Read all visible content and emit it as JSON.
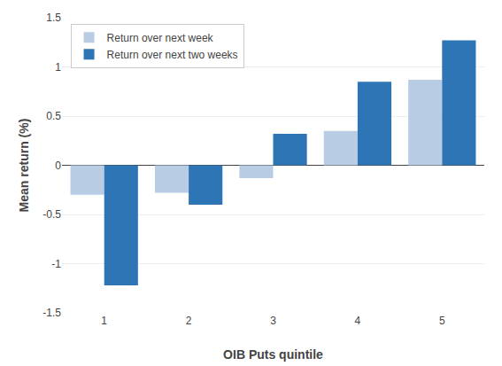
{
  "chart_data": {
    "type": "bar",
    "categories": [
      1,
      2,
      3,
      4,
      5
    ],
    "series": [
      {
        "name": "Return over next week",
        "color": "#b8cce4",
        "values": [
          -0.3,
          -0.28,
          -0.13,
          0.35,
          0.87
        ]
      },
      {
        "name": "Return over next two weeks",
        "color": "#2e75b6",
        "values": [
          -1.22,
          -0.4,
          0.32,
          0.85,
          1.27
        ]
      }
    ],
    "xlabel": "OIB Puts quintile",
    "ylabel": "Mean return (%)",
    "ylim": [
      -1.5,
      1.5
    ],
    "yticks": [
      -1.5,
      -1,
      -0.5,
      0,
      0.5,
      1,
      1.5
    ],
    "grid": true,
    "legend": "upper left"
  }
}
